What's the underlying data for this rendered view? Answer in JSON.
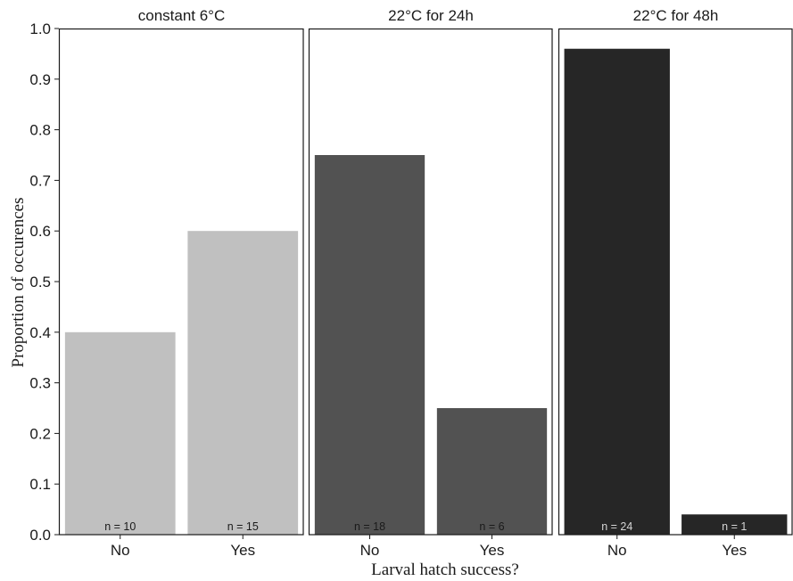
{
  "chart_data": {
    "type": "bar",
    "xlabel": "Larval hatch success?",
    "ylabel": "Proportion of occurences",
    "ylim": [
      0,
      1.0
    ],
    "yticks": [
      "0.0",
      "0.1",
      "0.2",
      "0.3",
      "0.4",
      "0.5",
      "0.6",
      "0.7",
      "0.8",
      "0.9",
      "1.0"
    ],
    "categories": [
      "No",
      "Yes"
    ],
    "grid": false,
    "panels": [
      {
        "title": "constant 6°C",
        "color": "#c0c0c0",
        "n_label_color": "#1a1a1a",
        "values": [
          0.4,
          0.6
        ],
        "n_labels": [
          "n = 10",
          "n = 15"
        ]
      },
      {
        "title": "22°C for 24h",
        "color": "#525252",
        "n_label_color": "#1a1a1a",
        "values": [
          0.75,
          0.25
        ],
        "n_labels": [
          "n = 18",
          "n = 6"
        ]
      },
      {
        "title": "22°C for 48h",
        "color": "#262626",
        "n_label_color": "#d4d4d4",
        "values": [
          0.96,
          0.04
        ],
        "n_labels": [
          "n = 24",
          "n = 1"
        ]
      }
    ]
  }
}
